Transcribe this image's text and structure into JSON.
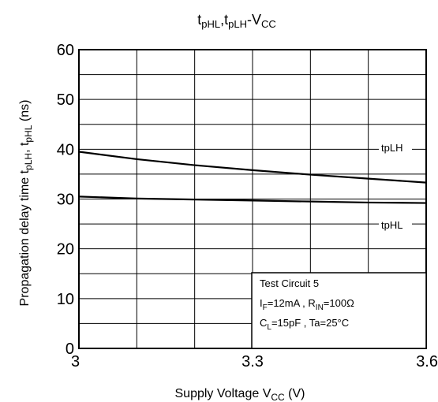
{
  "chart_data": {
    "type": "line",
    "title": {
      "parts": [
        {
          "text": "t",
          "sub": "pHL"
        },
        {
          "text": ",t",
          "sub": "pLH"
        },
        {
          "text": "-V",
          "sub": "CC"
        }
      ]
    },
    "xlabel": {
      "prefix": "Supply Voltage V",
      "sub": "CC",
      "suffix": " (V)"
    },
    "ylabel": {
      "parts": [
        {
          "text": "Propagation delay time   t",
          "sub": "pLH"
        },
        {
          "text": ", t",
          "sub": "pHL"
        },
        {
          "text": "    (ns)",
          "sub": ""
        }
      ]
    },
    "xlim": [
      3,
      3.6
    ],
    "ylim": [
      0,
      60
    ],
    "x_ticks": [
      "3",
      "3.3",
      "3.6"
    ],
    "y_ticks": [
      "0",
      "10",
      "20",
      "30",
      "40",
      "50",
      "60"
    ],
    "grid": true,
    "series": [
      {
        "name": "tpLH",
        "x": [
          3.0,
          3.1,
          3.2,
          3.3,
          3.4,
          3.5,
          3.6
        ],
        "y": [
          39.5,
          38.0,
          36.8,
          35.8,
          34.9,
          34.1,
          33.3
        ]
      },
      {
        "name": "tpHL",
        "x": [
          3.0,
          3.1,
          3.2,
          3.3,
          3.4,
          3.5,
          3.6
        ],
        "y": [
          30.5,
          30.1,
          29.9,
          29.7,
          29.5,
          29.3,
          29.2
        ]
      }
    ],
    "annotation": {
      "line1": "Test Circuit 5",
      "line2": [
        {
          "text": "I",
          "sub": "F"
        },
        {
          "text": "=12mA , R",
          "sub": "IN"
        },
        {
          "text": "=100Ω",
          "sub": ""
        }
      ],
      "line3": [
        {
          "text": "C",
          "sub": "L"
        },
        {
          "text": "=15pF , Ta=25°C",
          "sub": ""
        }
      ]
    },
    "colors": {
      "line": "#000000",
      "grid": "#000000",
      "background": "#ffffff"
    }
  }
}
